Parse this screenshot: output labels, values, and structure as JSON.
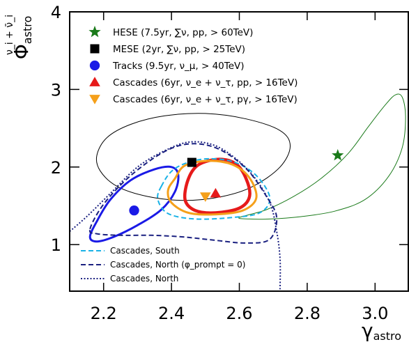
{
  "chart_data": {
    "type": "scatter",
    "xlabel": "γ",
    "xlabel_sub": "astro",
    "ylabel": "Φ",
    "ylabel_sub": "astro",
    "ylabel_sup": "ν_i + ν̄_i",
    "xlim": [
      2.1,
      3.1
    ],
    "ylim": [
      0.4,
      4.0
    ],
    "x_ticks": [
      {
        "value": 2.2,
        "label": "2.2"
      },
      {
        "value": 2.4,
        "label": "2.4"
      },
      {
        "value": 2.6,
        "label": "2.6"
      },
      {
        "value": 2.8,
        "label": "2.8"
      },
      {
        "value": 3.0,
        "label": "3.0"
      }
    ],
    "y_ticks": [
      {
        "value": 1,
        "label": "1"
      },
      {
        "value": 2,
        "label": "2"
      },
      {
        "value": 3,
        "label": "3"
      },
      {
        "value": 4,
        "label": "4"
      }
    ],
    "grid": false,
    "best_fit_points": [
      {
        "name": "HESE (7.5yr, ∑ν, pp, > 60TeV)",
        "x": 2.89,
        "y": 2.15,
        "marker": "star",
        "color": "#1a7a1a"
      },
      {
        "name": "MESE (2yr, ∑ν, pp, > 25TeV)",
        "x": 2.46,
        "y": 2.06,
        "marker": "square",
        "color": "#000000"
      },
      {
        "name": "Tracks (9.5yr, ν_μ, > 40TeV)",
        "x": 2.29,
        "y": 1.44,
        "marker": "circle",
        "color": "#1a1ae6"
      },
      {
        "name": "Cascades (6yr, ν_e + ν_τ, pp, > 16TeV)",
        "x": 2.53,
        "y": 1.66,
        "marker": "triangle-up",
        "color": "#e61a1a"
      },
      {
        "name": "Cascades (6yr, ν_e + ν_τ, pγ, > 16TeV)",
        "x": 2.5,
        "y": 1.62,
        "marker": "triangle-down",
        "color": "#f5a01a"
      }
    ],
    "contours": [
      {
        "name": "HESE",
        "color": "#1a7a1a",
        "style": "solid",
        "open": false,
        "points": [
          [
            2.6,
            1.35
          ],
          [
            2.68,
            1.45
          ],
          [
            2.76,
            1.62
          ],
          [
            2.84,
            1.85
          ],
          [
            2.92,
            2.17
          ],
          [
            2.98,
            2.52
          ],
          [
            3.03,
            2.8
          ],
          [
            3.06,
            2.93
          ],
          [
            3.08,
            2.9
          ],
          [
            3.09,
            2.65
          ],
          [
            3.08,
            2.25
          ],
          [
            3.04,
            1.88
          ],
          [
            2.97,
            1.58
          ],
          [
            2.88,
            1.43
          ],
          [
            2.78,
            1.36
          ],
          [
            2.69,
            1.33
          ],
          [
            2.63,
            1.33
          ]
        ]
      },
      {
        "name": "MESE",
        "color": "#000000",
        "style": "solid",
        "open": false,
        "points": [
          [
            2.18,
            2.15
          ],
          [
            2.21,
            2.38
          ],
          [
            2.28,
            2.55
          ],
          [
            2.38,
            2.66
          ],
          [
            2.5,
            2.69
          ],
          [
            2.62,
            2.62
          ],
          [
            2.72,
            2.47
          ],
          [
            2.75,
            2.27
          ],
          [
            2.72,
            2.0
          ],
          [
            2.64,
            1.75
          ],
          [
            2.55,
            1.62
          ],
          [
            2.44,
            1.57
          ],
          [
            2.33,
            1.62
          ],
          [
            2.24,
            1.75
          ],
          [
            2.19,
            1.95
          ]
        ]
      },
      {
        "name": "Tracks",
        "color": "#1a1ae6",
        "style": "solid",
        "open": false,
        "points": [
          [
            2.16,
            1.1
          ],
          [
            2.18,
            1.3
          ],
          [
            2.22,
            1.58
          ],
          [
            2.28,
            1.83
          ],
          [
            2.35,
            1.97
          ],
          [
            2.4,
            2.0
          ],
          [
            2.42,
            1.9
          ],
          [
            2.41,
            1.68
          ],
          [
            2.37,
            1.45
          ],
          [
            2.3,
            1.25
          ],
          [
            2.23,
            1.1
          ],
          [
            2.18,
            1.04
          ]
        ]
      },
      {
        "name": "Cascades pp",
        "color": "#e61a1a",
        "style": "solid",
        "open": false,
        "points": [
          [
            2.45,
            1.85
          ],
          [
            2.48,
            2.03
          ],
          [
            2.54,
            2.1
          ],
          [
            2.59,
            2.04
          ],
          [
            2.62,
            1.85
          ],
          [
            2.63,
            1.62
          ],
          [
            2.6,
            1.47
          ],
          [
            2.53,
            1.41
          ],
          [
            2.47,
            1.44
          ],
          [
            2.44,
            1.58
          ]
        ]
      },
      {
        "name": "Cascades pγ",
        "color": "#f5a01a",
        "style": "solid",
        "open": false,
        "points": [
          [
            2.41,
            1.85
          ],
          [
            2.44,
            2.02
          ],
          [
            2.51,
            2.08
          ],
          [
            2.58,
            2.03
          ],
          [
            2.63,
            1.86
          ],
          [
            2.65,
            1.6
          ],
          [
            2.61,
            1.44
          ],
          [
            2.53,
            1.39
          ],
          [
            2.45,
            1.41
          ],
          [
            2.4,
            1.54
          ],
          [
            2.39,
            1.7
          ]
        ]
      },
      {
        "name": "Cascades, South",
        "color": "#1ab2e6",
        "style": "dashed",
        "open": false,
        "points": [
          [
            2.37,
            1.75
          ],
          [
            2.41,
            1.98
          ],
          [
            2.49,
            2.1
          ],
          [
            2.58,
            2.07
          ],
          [
            2.65,
            1.89
          ],
          [
            2.69,
            1.6
          ],
          [
            2.66,
            1.41
          ],
          [
            2.58,
            1.35
          ],
          [
            2.47,
            1.33
          ],
          [
            2.39,
            1.4
          ],
          [
            2.36,
            1.58
          ]
        ]
      },
      {
        "name": "Cascades, North (φ_prompt = 0)",
        "color": "#1a2080",
        "style": "dashed",
        "open": false,
        "points": [
          [
            2.16,
            1.2
          ],
          [
            2.2,
            1.52
          ],
          [
            2.28,
            1.89
          ],
          [
            2.38,
            2.2
          ],
          [
            2.46,
            2.3
          ],
          [
            2.54,
            2.23
          ],
          [
            2.62,
            1.98
          ],
          [
            2.68,
            1.62
          ],
          [
            2.71,
            1.35
          ],
          [
            2.69,
            1.07
          ],
          [
            2.62,
            1.02
          ],
          [
            2.52,
            1.06
          ],
          [
            2.43,
            1.1
          ],
          [
            2.34,
            1.12
          ],
          [
            2.25,
            1.12
          ],
          [
            2.18,
            1.14
          ]
        ]
      },
      {
        "name": "Cascades, North",
        "color": "#1a2080",
        "style": "dotted",
        "open": true,
        "points": [
          [
            2.1,
            1.17
          ],
          [
            2.15,
            1.36
          ],
          [
            2.22,
            1.66
          ],
          [
            2.3,
            2.0
          ],
          [
            2.38,
            2.21
          ],
          [
            2.45,
            2.32
          ],
          [
            2.52,
            2.29
          ],
          [
            2.58,
            2.14
          ],
          [
            2.64,
            1.89
          ],
          [
            2.69,
            1.54
          ],
          [
            2.71,
            1.17
          ],
          [
            2.72,
            0.82
          ],
          [
            2.72,
            0.42
          ]
        ]
      }
    ],
    "legend_top": [
      {
        "marker": "star",
        "color": "#1a7a1a",
        "text": "HESE (7.5yr, ∑ν, pp, > 60TeV)"
      },
      {
        "marker": "square",
        "color": "#000000",
        "text": "MESE (2yr, ∑ν, pp, > 25TeV)"
      },
      {
        "marker": "circle",
        "color": "#1a1ae6",
        "text": "Tracks (9.5yr, ν_μ, > 40TeV)"
      },
      {
        "marker": "triangle-up",
        "color": "#e61a1a",
        "text": "Cascades (6yr, ν_e + ν_τ, pp, > 16TeV)"
      },
      {
        "marker": "triangle-down",
        "color": "#f5a01a",
        "text": "Cascades (6yr, ν_e + ν_τ, pγ, > 16TeV)"
      }
    ],
    "legend_bottom": [
      {
        "style": "dashed",
        "color": "#1ab2e6",
        "text": "Cascades, South"
      },
      {
        "style": "dashed",
        "color": "#1a2080",
        "text": "Cascades, North (φ_prompt = 0)"
      },
      {
        "style": "dotted",
        "color": "#1a2080",
        "text": "Cascades, North"
      }
    ]
  }
}
